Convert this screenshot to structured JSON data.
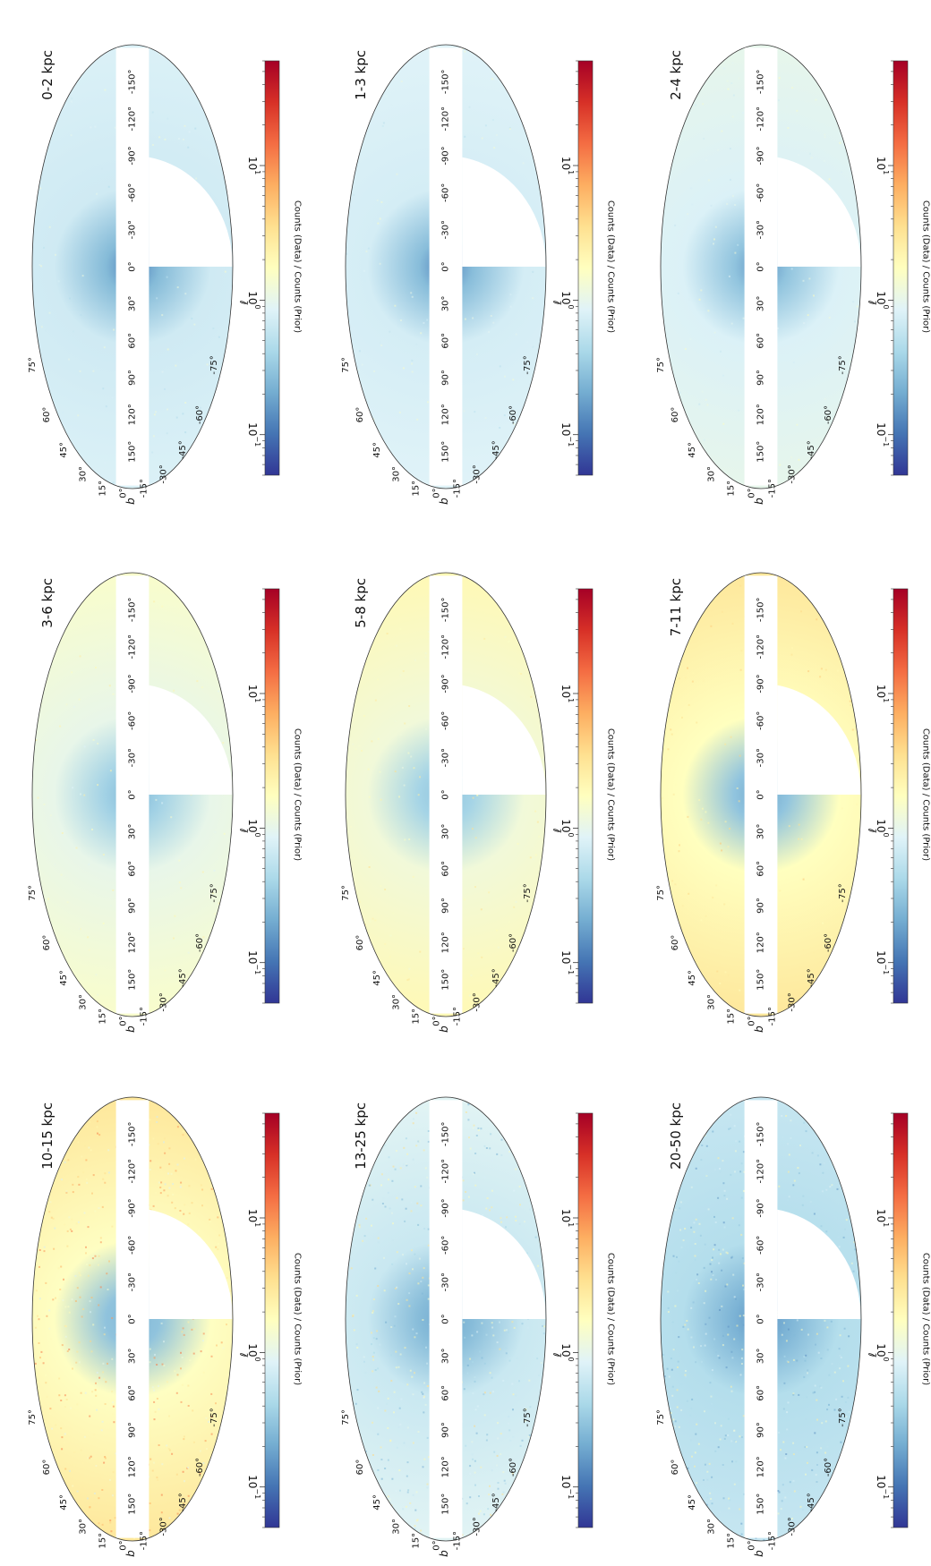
{
  "chart_data": {
    "type": "heatmap",
    "projection": "mollweide",
    "orientation": "figure rotated 90 degrees clockwise",
    "layout": {
      "rows": 3,
      "cols": 3
    },
    "axis_labels": {
      "x": "ℓ",
      "y": "b"
    },
    "lon_ticks": [
      "-150°",
      "-120°",
      "-90°",
      "-60°",
      "-30°",
      "0°",
      "30°",
      "60°",
      "90°",
      "120°",
      "150°"
    ],
    "lat_ticks_north": [
      "15°",
      "30°",
      "45°",
      "60°",
      "75°"
    ],
    "lat_ticks_south": [
      "0°",
      "-15°",
      "-30°",
      "-45°",
      "-60°",
      "-75°"
    ],
    "masked_region": {
      "b_min": -12,
      "b_max": 12,
      "southern_cap_b_below": -35,
      "southern_cap_l_range": [
        -90,
        0
      ]
    },
    "colorbar": {
      "label": "Counts (Data) / Counts (Prior)",
      "scale": "log",
      "range": [
        0.05,
        60
      ],
      "ticks": [
        {
          "text": "10",
          "exp": "1",
          "value": 10
        },
        {
          "text": "10",
          "exp": "0",
          "value": 1
        },
        {
          "text": "10",
          "exp": "−1",
          "value": 0.1
        }
      ],
      "colormap": [
        "#a50026",
        "#d73027",
        "#f46d43",
        "#fdae61",
        "#fee090",
        "#ffffbf",
        "#e0f3f8",
        "#abd9e9",
        "#74add1",
        "#4575b4",
        "#313695"
      ]
    },
    "panels": [
      {
        "title": "0-2 kpc",
        "bg_ratio": 0.8,
        "galactic_center_ratio": 0.12,
        "north_inner_ratio": 0.55
      },
      {
        "title": "1-3 kpc",
        "bg_ratio": 0.85,
        "galactic_center_ratio": 0.12,
        "north_inner_ratio": 0.6
      },
      {
        "title": "2-4 kpc",
        "bg_ratio": 1.0,
        "galactic_center_ratio": 0.15,
        "north_inner_ratio": 0.6
      },
      {
        "title": "3-6 kpc",
        "bg_ratio": 1.5,
        "galactic_center_ratio": 0.25,
        "north_inner_ratio": 0.55
      },
      {
        "title": "5-8 kpc",
        "bg_ratio": 2.0,
        "galactic_center_ratio": 0.3,
        "north_inner_ratio": 0.5
      },
      {
        "title": "7-11 kpc",
        "bg_ratio": 3.0,
        "galactic_center_ratio": 0.2,
        "north_inner_ratio": 0.45
      },
      {
        "title": "10-15 kpc",
        "bg_ratio": 3.0,
        "galactic_center_ratio": 0.25,
        "north_inner_ratio": 0.35
      },
      {
        "title": "13-25 kpc",
        "bg_ratio": 0.9,
        "galactic_center_ratio": 0.2,
        "north_inner_ratio": 0.35
      },
      {
        "title": "20-50 kpc",
        "bg_ratio": 0.6,
        "galactic_center_ratio": 0.15,
        "north_inner_ratio": 0.35
      }
    ]
  }
}
